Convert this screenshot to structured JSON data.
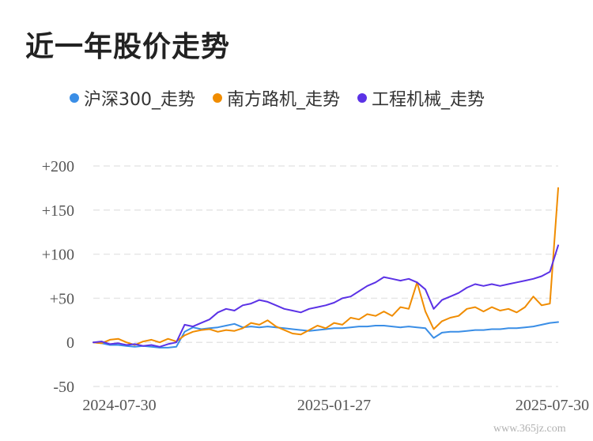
{
  "page": {
    "title": "近一年股价走势",
    "watermark": "www.365jz.com"
  },
  "chart_data": {
    "type": "line",
    "title": "近一年股价走势",
    "xlabel": "",
    "ylabel": "",
    "ylim": [
      -50,
      200
    ],
    "yticks": [
      200,
      150,
      100,
      50,
      0,
      -50
    ],
    "ytick_labels": [
      "+200",
      "+150",
      "+100",
      "+50",
      "0",
      "-50"
    ],
    "xtick_labels": [
      "2024-07-30",
      "2025-01-27",
      "2025-07-30"
    ],
    "grid": true,
    "legend_position": "top",
    "x": [
      "2024-07-08",
      "2024-07-15",
      "2024-07-22",
      "2024-07-29",
      "2024-08-05",
      "2024-08-12",
      "2024-08-19",
      "2024-08-26",
      "2024-09-02",
      "2024-09-09",
      "2024-09-16",
      "2024-09-23",
      "2024-09-30",
      "2024-10-07",
      "2024-10-14",
      "2024-10-21",
      "2024-10-28",
      "2024-11-04",
      "2024-11-11",
      "2024-11-18",
      "2024-11-25",
      "2024-12-02",
      "2024-12-09",
      "2024-12-16",
      "2024-12-23",
      "2024-12-30",
      "2025-01-06",
      "2025-01-13",
      "2025-01-20",
      "2025-01-27",
      "2025-02-03",
      "2025-02-10",
      "2025-02-17",
      "2025-02-24",
      "2025-03-03",
      "2025-03-10",
      "2025-03-17",
      "2025-03-24",
      "2025-03-31",
      "2025-04-07",
      "2025-04-14",
      "2025-04-21",
      "2025-04-28",
      "2025-05-05",
      "2025-05-12",
      "2025-05-19",
      "2025-05-26",
      "2025-06-02",
      "2025-06-09",
      "2025-06-16",
      "2025-06-23",
      "2025-06-30",
      "2025-07-07",
      "2025-07-14",
      "2025-07-21",
      "2025-07-28",
      "2025-08-04"
    ],
    "series": [
      {
        "name": "沪深300_走势",
        "color": "#3a8ee6",
        "values": [
          0,
          -1,
          -3,
          -3,
          -4,
          -5,
          -4,
          -5,
          -6,
          -6,
          -5,
          12,
          17,
          15,
          16,
          17,
          19,
          21,
          17,
          18,
          17,
          18,
          17,
          16,
          15,
          14,
          13,
          14,
          15,
          16,
          16,
          17,
          18,
          18,
          19,
          19,
          18,
          17,
          18,
          17,
          16,
          5,
          11,
          12,
          12,
          13,
          14,
          14,
          15,
          15,
          16,
          16,
          17,
          18,
          20,
          22,
          23
        ]
      },
      {
        "name": "南方路机_走势",
        "color": "#f08c00",
        "values": [
          0,
          -1,
          3,
          4,
          0,
          -3,
          1,
          3,
          0,
          4,
          1,
          8,
          12,
          14,
          15,
          12,
          14,
          13,
          16,
          22,
          20,
          25,
          18,
          14,
          10,
          9,
          14,
          19,
          16,
          22,
          20,
          28,
          26,
          32,
          30,
          35,
          30,
          40,
          38,
          68,
          35,
          15,
          24,
          28,
          30,
          38,
          40,
          35,
          40,
          36,
          38,
          34,
          40,
          52,
          42,
          44,
          175
        ]
      },
      {
        "name": "工程机械_走势",
        "color": "#5b32e6",
        "values": [
          0,
          1,
          -2,
          -1,
          -3,
          -2,
          -4,
          -3,
          -5,
          -2,
          0,
          20,
          18,
          22,
          26,
          34,
          38,
          36,
          42,
          44,
          48,
          46,
          42,
          38,
          36,
          34,
          38,
          40,
          42,
          45,
          50,
          52,
          58,
          64,
          68,
          74,
          72,
          70,
          72,
          68,
          60,
          38,
          48,
          52,
          56,
          62,
          66,
          64,
          66,
          64,
          66,
          68,
          70,
          72,
          75,
          80,
          110
        ]
      }
    ]
  }
}
